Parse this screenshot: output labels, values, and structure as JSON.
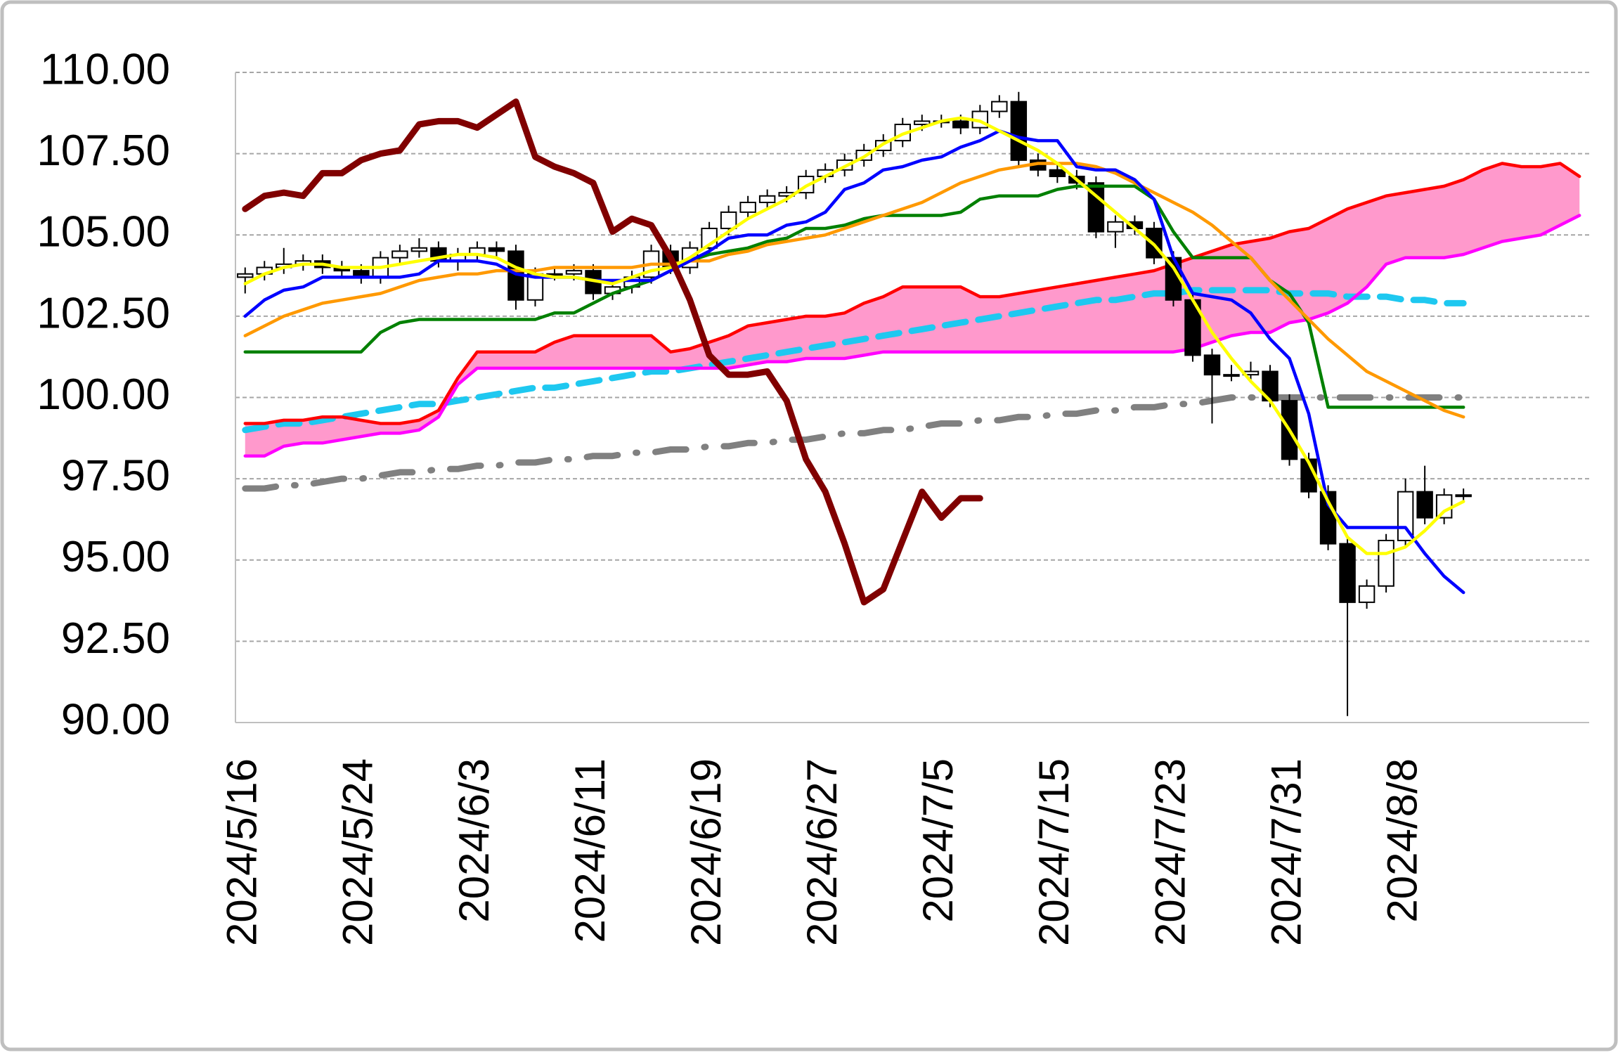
{
  "chart_data": {
    "type": "candlestick",
    "categories": [
      "2024/5/16",
      null,
      null,
      null,
      null,
      null,
      "2024/5/24",
      null,
      null,
      null,
      null,
      null,
      "2024/6/3",
      null,
      null,
      null,
      null,
      null,
      "2024/6/11",
      null,
      null,
      null,
      null,
      null,
      "2024/6/19",
      null,
      null,
      null,
      null,
      null,
      "2024/6/27",
      null,
      null,
      null,
      null,
      null,
      "2024/7/5",
      null,
      null,
      null,
      null,
      null,
      "2024/7/15",
      null,
      null,
      null,
      null,
      null,
      "2024/7/23",
      null,
      null,
      null,
      null,
      null,
      "2024/7/31",
      null,
      null,
      null,
      null,
      null,
      "2024/8/8",
      null,
      null,
      null,
      null,
      null,
      null,
      null,
      null,
      null
    ],
    "ylim": [
      90,
      110
    ],
    "yticks": [
      {
        "value": 90,
        "label": "90.00"
      },
      {
        "value": 92.5,
        "label": "92.50"
      },
      {
        "value": 95,
        "label": "95.00"
      },
      {
        "value": 97.5,
        "label": "97.50"
      },
      {
        "value": 100,
        "label": "100.00"
      },
      {
        "value": 102.5,
        "label": "102.50"
      },
      {
        "value": 105,
        "label": "105.00"
      },
      {
        "value": 107.5,
        "label": "107.50"
      },
      {
        "value": 110,
        "label": "110.00"
      }
    ],
    "grid": true,
    "series": [
      {
        "type": "line",
        "color": "#808080",
        "line_style": "dashdot",
        "values": [
          97.2,
          97.2,
          97.3,
          97.3,
          97.4,
          97.5,
          97.5,
          97.6,
          97.7,
          97.7,
          97.8,
          97.8,
          97.9,
          97.9,
          98.0,
          98.0,
          98.1,
          98.1,
          98.2,
          98.2,
          98.3,
          98.3,
          98.4,
          98.4,
          98.5,
          98.5,
          98.6,
          98.6,
          98.7,
          98.7,
          98.8,
          98.9,
          98.9,
          99.0,
          99.0,
          99.1,
          99.2,
          99.2,
          99.3,
          99.3,
          99.4,
          99.4,
          99.5,
          99.5,
          99.6,
          99.6,
          99.7,
          99.7,
          99.8,
          99.8,
          99.9,
          100.0,
          100.0,
          100.0,
          100.0,
          100.0,
          100.0,
          100.0,
          100.0,
          100.0,
          100.0,
          100.0,
          100.0,
          100.0,
          null,
          null,
          null,
          null,
          null,
          null
        ]
      },
      {
        "type": "line",
        "color": "#1ec8f0",
        "line_style": "dashed",
        "values": [
          99.0,
          99.1,
          99.2,
          99.2,
          99.3,
          99.4,
          99.5,
          99.6,
          99.7,
          99.8,
          99.8,
          99.9,
          100.0,
          100.1,
          100.2,
          100.3,
          100.3,
          100.4,
          100.5,
          100.6,
          100.7,
          100.8,
          100.8,
          100.9,
          101.0,
          101.1,
          101.2,
          101.3,
          101.4,
          101.5,
          101.6,
          101.7,
          101.8,
          101.9,
          102.0,
          102.1,
          102.2,
          102.3,
          102.4,
          102.5,
          102.6,
          102.7,
          102.8,
          102.9,
          103.0,
          103.0,
          103.1,
          103.2,
          103.2,
          103.3,
          103.3,
          103.3,
          103.3,
          103.3,
          103.2,
          103.2,
          103.2,
          103.1,
          103.1,
          103.1,
          103.0,
          103.0,
          102.9,
          102.9,
          null,
          null,
          null,
          null,
          null,
          null
        ]
      },
      {
        "type": "line",
        "color": "#ff0000",
        "line_style": "solid",
        "fill_color": "#ff99cc",
        "values": [
          99.2,
          99.2,
          99.3,
          99.3,
          99.4,
          99.4,
          99.3,
          99.2,
          99.2,
          99.3,
          99.6,
          100.6,
          101.4,
          101.4,
          101.4,
          101.4,
          101.7,
          101.9,
          101.9,
          101.9,
          101.9,
          101.9,
          101.4,
          101.5,
          101.7,
          101.9,
          102.2,
          102.3,
          102.4,
          102.5,
          102.5,
          102.6,
          102.9,
          103.1,
          103.4,
          103.4,
          103.4,
          103.4,
          103.1,
          103.1,
          103.2,
          103.3,
          103.4,
          103.5,
          103.6,
          103.7,
          103.8,
          103.9,
          104.1,
          104.3,
          104.5,
          104.7,
          104.8,
          104.9,
          105.1,
          105.2,
          105.5,
          105.8,
          106.0,
          106.2,
          106.3,
          106.4,
          106.5,
          106.7,
          107.0,
          107.2,
          107.1,
          107.1,
          107.2,
          106.8
        ]
      },
      {
        "type": "line",
        "color": "#ff00ff",
        "line_style": "solid",
        "values": [
          98.2,
          98.2,
          98.5,
          98.6,
          98.6,
          98.7,
          98.8,
          98.9,
          98.9,
          99.0,
          99.4,
          100.4,
          100.9,
          100.9,
          100.9,
          100.9,
          100.9,
          100.9,
          100.9,
          100.9,
          100.9,
          100.9,
          100.9,
          100.9,
          100.9,
          100.9,
          101.0,
          101.1,
          101.1,
          101.2,
          101.2,
          101.2,
          101.3,
          101.4,
          101.4,
          101.4,
          101.4,
          101.4,
          101.4,
          101.4,
          101.4,
          101.4,
          101.4,
          101.4,
          101.4,
          101.4,
          101.4,
          101.4,
          101.4,
          101.5,
          101.7,
          101.9,
          102.0,
          102.0,
          102.3,
          102.4,
          102.6,
          102.9,
          103.4,
          104.1,
          104.3,
          104.3,
          104.3,
          104.4,
          104.6,
          104.8,
          104.9,
          105.0,
          105.3,
          105.6
        ]
      },
      {
        "type": "candlestick",
        "up_color": "#ffffff",
        "down_color": "#000000",
        "open": [
          103.7,
          103.8,
          104.0,
          104.1,
          104.2,
          104.0,
          103.9,
          103.7,
          104.3,
          104.5,
          104.6,
          104.2,
          104.4,
          104.6,
          104.5,
          103.0,
          103.8,
          103.8,
          103.9,
          103.2,
          103.4,
          103.7,
          104.5,
          104.0,
          104.6,
          105.2,
          105.7,
          106.0,
          106.2,
          106.3,
          106.8,
          107.0,
          107.3,
          107.6,
          107.9,
          108.4,
          108.5,
          108.5,
          108.3,
          108.8,
          109.1,
          107.3,
          107.0,
          106.8,
          106.6,
          105.1,
          105.4,
          105.2,
          104.3,
          103.0,
          101.3,
          100.7,
          100.7,
          100.8,
          99.9,
          98.1,
          97.1,
          95.5,
          93.7,
          94.2,
          95.6,
          97.1,
          96.3,
          97.0,
          null,
          null,
          null,
          null,
          null,
          null
        ],
        "high": [
          104.0,
          104.2,
          104.6,
          104.4,
          104.4,
          104.2,
          104.1,
          104.5,
          104.7,
          104.9,
          104.8,
          104.6,
          104.8,
          104.8,
          104.7,
          104.0,
          104.0,
          104.1,
          104.1,
          103.6,
          103.9,
          104.7,
          104.7,
          104.8,
          105.4,
          105.9,
          106.2,
          106.4,
          106.5,
          107.0,
          107.2,
          107.5,
          107.8,
          108.1,
          108.6,
          108.7,
          108.7,
          108.7,
          109.0,
          109.3,
          109.4,
          107.5,
          107.2,
          107.0,
          106.8,
          105.6,
          105.6,
          105.4,
          104.5,
          103.2,
          101.5,
          101.0,
          101.1,
          101.0,
          100.1,
          98.3,
          97.3,
          95.7,
          94.4,
          95.8,
          97.5,
          97.9,
          97.2,
          97.2,
          null,
          null,
          null,
          null,
          null,
          null
        ],
        "low": [
          103.2,
          103.6,
          103.8,
          103.9,
          103.8,
          103.7,
          103.5,
          103.5,
          104.1,
          104.3,
          104.0,
          103.9,
          104.2,
          104.3,
          102.7,
          102.8,
          103.6,
          103.6,
          103.0,
          103.0,
          103.2,
          103.5,
          103.8,
          103.8,
          104.4,
          105.0,
          105.5,
          105.8,
          106.0,
          106.1,
          106.6,
          106.8,
          107.1,
          107.4,
          107.7,
          108.2,
          108.3,
          108.1,
          108.1,
          108.6,
          107.1,
          106.8,
          106.6,
          106.4,
          104.9,
          104.6,
          105.0,
          104.1,
          102.8,
          101.1,
          99.2,
          100.5,
          100.5,
          99.7,
          97.9,
          96.9,
          95.3,
          90.2,
          93.5,
          94.0,
          95.4,
          96.1,
          96.1,
          96.8,
          null,
          null,
          null,
          null,
          null,
          null
        ],
        "close": [
          103.8,
          104.0,
          104.1,
          104.2,
          104.0,
          103.9,
          103.7,
          104.3,
          104.5,
          104.6,
          104.2,
          104.4,
          104.6,
          104.5,
          103.0,
          103.8,
          103.8,
          103.9,
          103.2,
          103.4,
          103.7,
          104.5,
          104.0,
          104.6,
          105.2,
          105.7,
          106.0,
          106.2,
          106.3,
          106.8,
          107.0,
          107.3,
          107.6,
          107.9,
          108.4,
          108.5,
          108.5,
          108.3,
          108.8,
          109.1,
          107.3,
          107.0,
          106.8,
          106.6,
          105.1,
          105.4,
          105.2,
          104.3,
          103.0,
          101.3,
          100.7,
          100.7,
          100.8,
          99.9,
          98.1,
          97.1,
          95.5,
          93.7,
          94.2,
          95.6,
          97.1,
          96.3,
          97.0,
          97.0,
          null,
          null,
          null,
          null,
          null,
          null
        ]
      },
      {
        "type": "line",
        "color": "#008000",
        "line_style": "solid",
        "values": [
          101.4,
          101.4,
          101.4,
          101.4,
          101.4,
          101.4,
          101.4,
          102.0,
          102.3,
          102.4,
          102.4,
          102.4,
          102.4,
          102.4,
          102.4,
          102.4,
          102.6,
          102.6,
          102.9,
          103.2,
          103.4,
          103.6,
          103.9,
          104.2,
          104.4,
          104.5,
          104.6,
          104.8,
          104.9,
          105.2,
          105.2,
          105.3,
          105.5,
          105.6,
          105.6,
          105.6,
          105.6,
          105.7,
          106.1,
          106.2,
          106.2,
          106.2,
          106.4,
          106.5,
          106.5,
          106.5,
          106.5,
          106.1,
          105.1,
          104.3,
          104.3,
          104.3,
          104.3,
          103.6,
          103.2,
          102.3,
          99.7,
          99.7,
          99.7,
          99.7,
          99.7,
          99.7,
          99.7,
          99.7,
          null,
          null,
          null,
          null,
          null,
          null
        ]
      },
      {
        "type": "line",
        "color": "#ff9900",
        "line_style": "solid",
        "values": [
          101.9,
          102.2,
          102.5,
          102.7,
          102.9,
          103.0,
          103.1,
          103.2,
          103.4,
          103.6,
          103.7,
          103.8,
          103.8,
          103.9,
          103.9,
          103.9,
          104.0,
          104.0,
          104.0,
          104.0,
          104.0,
          104.1,
          104.1,
          104.2,
          104.2,
          104.4,
          104.5,
          104.7,
          104.8,
          104.9,
          105.0,
          105.2,
          105.4,
          105.6,
          105.8,
          106.0,
          106.3,
          106.6,
          106.8,
          107.0,
          107.1,
          107.2,
          107.2,
          107.2,
          107.1,
          106.9,
          106.6,
          106.3,
          106.0,
          105.7,
          105.3,
          104.8,
          104.3,
          103.6,
          103.0,
          102.4,
          101.8,
          101.3,
          100.8,
          100.5,
          100.2,
          99.9,
          99.6,
          99.4,
          null,
          null,
          null,
          null,
          null,
          null
        ]
      },
      {
        "type": "line",
        "color": "#0000ff",
        "line_style": "solid",
        "values": [
          102.5,
          103.0,
          103.3,
          103.4,
          103.7,
          103.7,
          103.7,
          103.7,
          103.7,
          103.8,
          104.2,
          104.2,
          104.2,
          104.1,
          103.8,
          103.7,
          103.7,
          103.7,
          103.6,
          103.6,
          103.6,
          103.6,
          103.9,
          104.2,
          104.5,
          104.9,
          105.0,
          105.0,
          105.3,
          105.4,
          105.7,
          106.4,
          106.6,
          107.0,
          107.1,
          107.3,
          107.4,
          107.7,
          107.9,
          108.2,
          108.0,
          107.9,
          107.9,
          107.1,
          107.0,
          107.0,
          106.7,
          106.1,
          104.3,
          103.2,
          103.1,
          103.0,
          102.6,
          101.8,
          101.2,
          99.5,
          96.7,
          96.0,
          96.0,
          96.0,
          96.0,
          95.2,
          94.5,
          94.0,
          null,
          null,
          null,
          null,
          null,
          null
        ]
      },
      {
        "type": "line",
        "color": "#ffff00",
        "line_style": "solid",
        "values": [
          103.5,
          103.8,
          104.0,
          104.1,
          104.1,
          104.0,
          104.0,
          104.0,
          104.1,
          104.2,
          104.3,
          104.4,
          104.4,
          104.3,
          104.0,
          103.8,
          103.7,
          103.7,
          103.6,
          103.5,
          103.7,
          103.9,
          104.0,
          104.3,
          104.7,
          105.1,
          105.5,
          105.8,
          106.1,
          106.5,
          106.8,
          107.1,
          107.4,
          107.8,
          108.1,
          108.3,
          108.5,
          108.6,
          108.5,
          108.2,
          107.9,
          107.6,
          107.2,
          106.7,
          106.2,
          105.7,
          105.2,
          104.7,
          104.0,
          103.0,
          102.0,
          101.2,
          100.5,
          99.9,
          99.0,
          98.0,
          96.8,
          95.7,
          95.2,
          95.2,
          95.4,
          95.9,
          96.5,
          96.8,
          null,
          null,
          null,
          null,
          null,
          null
        ]
      },
      {
        "type": "line",
        "color": "#800000",
        "line_style": "thick",
        "values": [
          105.8,
          106.2,
          106.3,
          106.2,
          106.9,
          106.9,
          107.3,
          107.5,
          107.6,
          108.4,
          108.5,
          108.5,
          108.3,
          108.7,
          109.1,
          107.4,
          107.1,
          106.9,
          106.6,
          105.1,
          105.5,
          105.3,
          104.3,
          103.0,
          101.3,
          100.7,
          100.7,
          100.8,
          99.9,
          98.1,
          97.1,
          95.5,
          93.7,
          94.1,
          95.6,
          97.1,
          96.3,
          96.9,
          96.9,
          null,
          null,
          null,
          null,
          null,
          null,
          null,
          null,
          null,
          null,
          null,
          null,
          null,
          null,
          null,
          null,
          null,
          null,
          null,
          null,
          null,
          null,
          null,
          null,
          null,
          null,
          null,
          null,
          null,
          null,
          null
        ]
      }
    ]
  }
}
